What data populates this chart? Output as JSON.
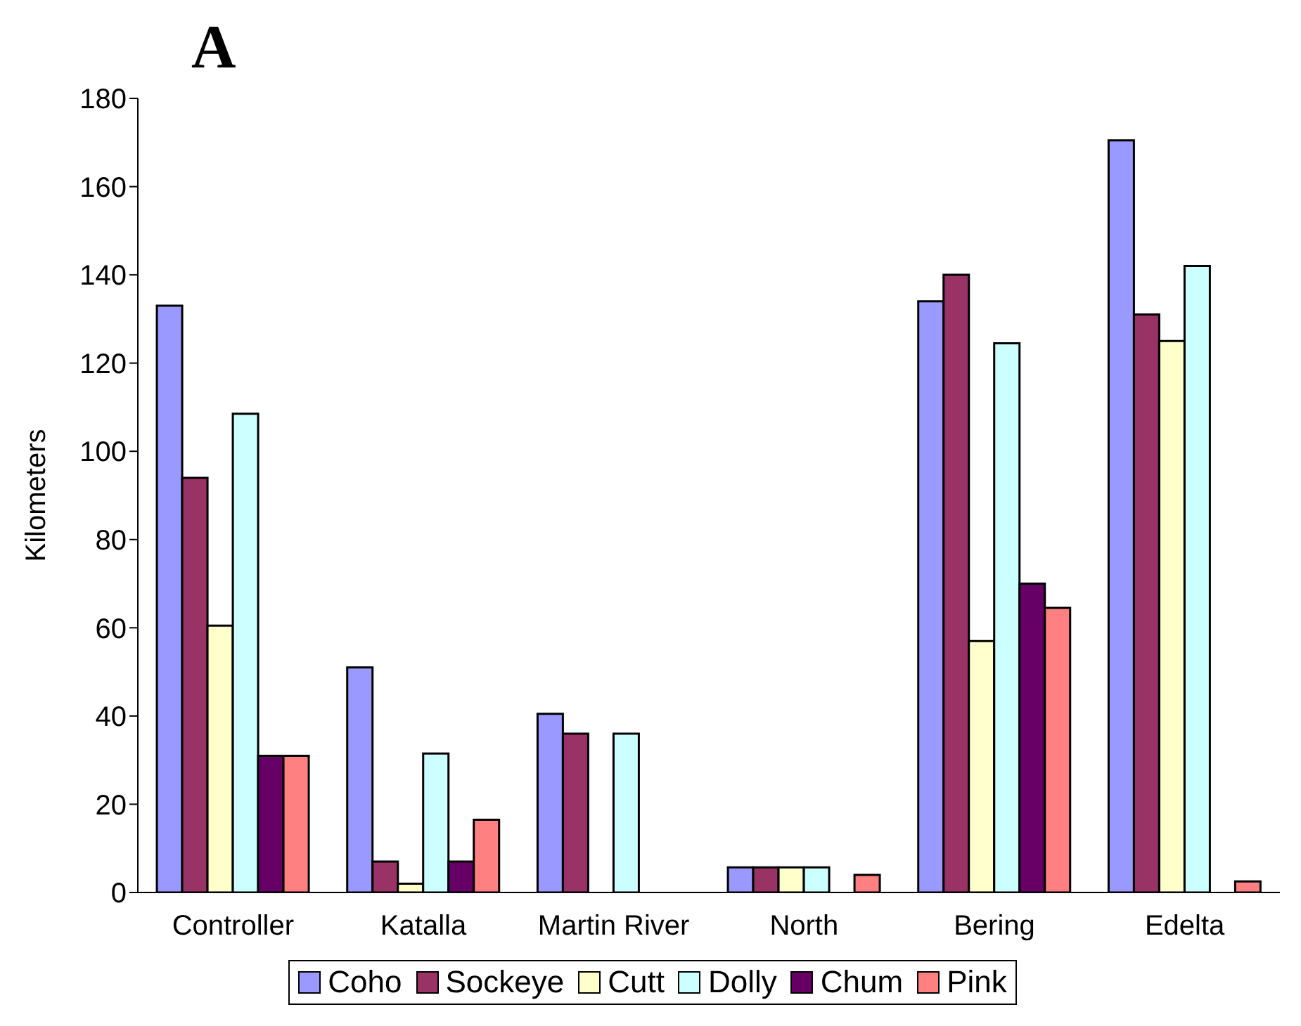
{
  "chart_data": {
    "type": "bar",
    "title": "A",
    "ylabel": "Kilometers",
    "categories": [
      "Controller",
      "Katalla",
      "Martin River",
      "North",
      "Bering",
      "Edelta"
    ],
    "series": [
      {
        "name": "Coho",
        "color": "#9999ff",
        "values": [
          133,
          51,
          40.5,
          5.7,
          134,
          170.5
        ]
      },
      {
        "name": "Sockeye",
        "color": "#993366",
        "values": [
          94,
          7,
          36,
          5.7,
          140,
          131
        ]
      },
      {
        "name": "Cutt",
        "color": "#ffffcc",
        "values": [
          60.5,
          2,
          0,
          5.7,
          57,
          125
        ]
      },
      {
        "name": "Dolly",
        "color": "#ccffff",
        "values": [
          108.5,
          31.5,
          36,
          5.7,
          124.5,
          142
        ]
      },
      {
        "name": "Chum",
        "color": "#660066",
        "values": [
          31,
          7,
          0,
          0,
          70,
          0
        ]
      },
      {
        "name": "Pink",
        "color": "#ff8080",
        "values": [
          31,
          16.5,
          0,
          4,
          64.5,
          2.5
        ]
      }
    ],
    "ylim": [
      0,
      180
    ],
    "yticks": [
      0,
      20,
      40,
      60,
      80,
      100,
      120,
      140,
      160,
      180
    ],
    "grid": false,
    "legend": "bottom"
  }
}
